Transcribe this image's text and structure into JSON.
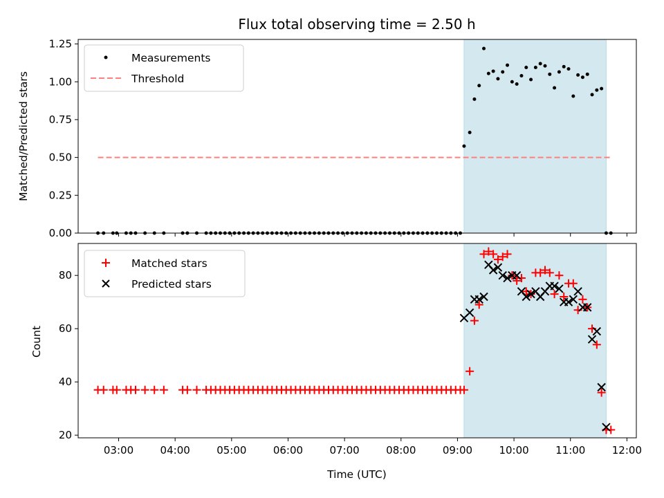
{
  "chart_data": [
    {
      "type": "scatter",
      "title": "Flux total observing time = 2.50 h",
      "ylabel": "Matched/Predicted stars",
      "xlim": [
        "02:17",
        "12:10"
      ],
      "ylim": [
        0,
        1.28
      ],
      "yticks": [
        0.0,
        0.25,
        0.5,
        0.75,
        1.0,
        1.25
      ],
      "ytick_labels": [
        "0.00",
        "0.25",
        "0.50",
        "0.75",
        "1.00",
        "1.25"
      ],
      "legend_loc": "upper-left",
      "shaded_region": {
        "x_start": "09:07",
        "x_end": "11:38",
        "color": "#d3e9ef"
      },
      "series": [
        {
          "name": "Measurements",
          "kind": "scatter",
          "color": "#000000",
          "x": [
            "02:38",
            "02:44",
            "02:54",
            "02:58",
            "03:08",
            "03:13",
            "03:18",
            "03:28",
            "03:38",
            "03:48",
            "04:08",
            "04:13",
            "04:23",
            "04:33",
            "04:38",
            "04:43",
            "04:48",
            "04:53",
            "04:58",
            "05:03",
            "05:08",
            "05:13",
            "05:18",
            "05:23",
            "05:28",
            "05:33",
            "05:38",
            "05:43",
            "05:48",
            "05:53",
            "05:58",
            "06:03",
            "06:08",
            "06:13",
            "06:18",
            "06:23",
            "06:28",
            "06:33",
            "06:38",
            "06:43",
            "06:48",
            "06:53",
            "06:58",
            "07:03",
            "07:08",
            "07:13",
            "07:18",
            "07:23",
            "07:28",
            "07:33",
            "07:38",
            "07:43",
            "07:48",
            "07:53",
            "07:58",
            "08:03",
            "08:08",
            "08:13",
            "08:18",
            "08:23",
            "08:28",
            "08:33",
            "08:38",
            "08:43",
            "08:48",
            "08:53",
            "08:58",
            "09:03",
            "09:07",
            "09:13",
            "09:18",
            "09:23",
            "09:28",
            "09:33",
            "09:38",
            "09:43",
            "09:48",
            "09:53",
            "09:58",
            "10:03",
            "10:08",
            "10:13",
            "10:18",
            "10:23",
            "10:28",
            "10:33",
            "10:38",
            "10:43",
            "10:48",
            "10:53",
            "10:58",
            "11:03",
            "11:08",
            "11:13",
            "11:18",
            "11:23",
            "11:28",
            "11:33",
            "11:38",
            "11:43"
          ],
          "y": [
            0,
            0,
            0,
            0,
            0,
            0,
            0,
            0,
            0,
            0,
            0,
            0,
            0,
            0,
            0,
            0,
            0,
            0,
            0,
            0,
            0,
            0,
            0,
            0,
            0,
            0,
            0,
            0,
            0,
            0,
            0,
            0,
            0,
            0,
            0,
            0,
            0,
            0,
            0,
            0,
            0,
            0,
            0,
            0,
            0,
            0,
            0,
            0,
            0,
            0,
            0,
            0,
            0,
            0,
            0,
            0,
            0,
            0,
            0,
            0,
            0,
            0,
            0,
            0,
            0,
            0,
            0,
            0,
            0.575,
            0.665,
            0.885,
            0.975,
            1.22,
            1.055,
            1.07,
            1.02,
            1.065,
            1.11,
            1.0,
            0.985,
            1.04,
            1.095,
            1.015,
            1.095,
            1.12,
            1.105,
            1.05,
            0.96,
            1.065,
            1.1,
            1.085,
            0.905,
            1.045,
            1.03,
            1.05,
            0.915,
            0.945,
            0.955,
            0.0,
            0.0
          ]
        },
        {
          "name": "Threshold",
          "kind": "line",
          "color": "#ff7f7f",
          "x": [
            "02:38",
            "11:43"
          ],
          "y": [
            0.5,
            0.5
          ]
        }
      ]
    },
    {
      "type": "scatter",
      "xlabel": "Time (UTC)",
      "ylabel": "Count",
      "xlim": [
        "02:17",
        "12:10"
      ],
      "ylim": [
        19,
        92
      ],
      "xticks": [
        "03:00",
        "04:00",
        "05:00",
        "06:00",
        "07:00",
        "08:00",
        "09:00",
        "10:00",
        "11:00",
        "12:00"
      ],
      "yticks": [
        20,
        40,
        60,
        80
      ],
      "ytick_labels": [
        "20",
        "40",
        "60",
        "80"
      ],
      "legend_loc": "upper-left",
      "shaded_region": {
        "x_start": "09:07",
        "x_end": "11:38",
        "color": "#d3e9ef"
      },
      "series": [
        {
          "name": "Matched stars",
          "kind": "scatter",
          "marker": "plus",
          "color": "#ff0000",
          "x": [
            "02:38",
            "02:44",
            "02:54",
            "02:58",
            "03:08",
            "03:13",
            "03:18",
            "03:28",
            "03:38",
            "03:48",
            "04:08",
            "04:13",
            "04:23",
            "04:33",
            "04:38",
            "04:43",
            "04:48",
            "04:53",
            "04:58",
            "05:03",
            "05:08",
            "05:13",
            "05:18",
            "05:23",
            "05:28",
            "05:33",
            "05:38",
            "05:43",
            "05:48",
            "05:53",
            "05:58",
            "06:03",
            "06:08",
            "06:13",
            "06:18",
            "06:23",
            "06:28",
            "06:33",
            "06:38",
            "06:43",
            "06:48",
            "06:53",
            "06:58",
            "07:03",
            "07:08",
            "07:13",
            "07:18",
            "07:23",
            "07:28",
            "07:33",
            "07:38",
            "07:43",
            "07:48",
            "07:53",
            "07:58",
            "08:03",
            "08:08",
            "08:13",
            "08:18",
            "08:23",
            "08:28",
            "08:33",
            "08:38",
            "08:43",
            "08:48",
            "08:53",
            "08:58",
            "09:03",
            "09:07",
            "09:13",
            "09:18",
            "09:23",
            "09:28",
            "09:33",
            "09:38",
            "09:43",
            "09:48",
            "09:53",
            "09:58",
            "10:03",
            "10:08",
            "10:13",
            "10:18",
            "10:23",
            "10:28",
            "10:33",
            "10:38",
            "10:43",
            "10:48",
            "10:53",
            "10:58",
            "11:03",
            "11:08",
            "11:13",
            "11:18",
            "11:23",
            "11:28",
            "11:33",
            "11:38",
            "11:43"
          ],
          "y": [
            37,
            37,
            37,
            37,
            37,
            37,
            37,
            37,
            37,
            37,
            37,
            37,
            37,
            37,
            37,
            37,
            37,
            37,
            37,
            37,
            37,
            37,
            37,
            37,
            37,
            37,
            37,
            37,
            37,
            37,
            37,
            37,
            37,
            37,
            37,
            37,
            37,
            37,
            37,
            37,
            37,
            37,
            37,
            37,
            37,
            37,
            37,
            37,
            37,
            37,
            37,
            37,
            37,
            37,
            37,
            37,
            37,
            37,
            37,
            37,
            37,
            37,
            37,
            37,
            37,
            37,
            37,
            37,
            37,
            44,
            63,
            69,
            88,
            89,
            88,
            86,
            87,
            88,
            80,
            78,
            79,
            74,
            73,
            81,
            81,
            82,
            81,
            73,
            80,
            72,
            77,
            77,
            67,
            71,
            68,
            60,
            54,
            36,
            22,
            22
          ]
        },
        {
          "name": "Predicted stars",
          "kind": "scatter",
          "marker": "x",
          "color": "#000000",
          "x": [
            "09:07",
            "09:13",
            "09:18",
            "09:23",
            "09:28",
            "09:33",
            "09:38",
            "09:43",
            "09:48",
            "09:53",
            "09:58",
            "10:03",
            "10:08",
            "10:13",
            "10:18",
            "10:23",
            "10:28",
            "10:33",
            "10:38",
            "10:43",
            "10:48",
            "10:53",
            "10:58",
            "11:03",
            "11:08",
            "11:13",
            "11:18",
            "11:23",
            "11:28",
            "11:33",
            "11:38"
          ],
          "y": [
            64,
            66,
            71,
            71,
            72,
            84,
            82,
            83,
            80,
            79,
            80,
            80,
            74,
            72,
            73,
            74,
            72,
            74,
            76,
            76,
            75,
            70,
            70,
            71,
            74,
            68,
            68,
            56,
            59,
            38,
            23
          ]
        }
      ]
    }
  ]
}
